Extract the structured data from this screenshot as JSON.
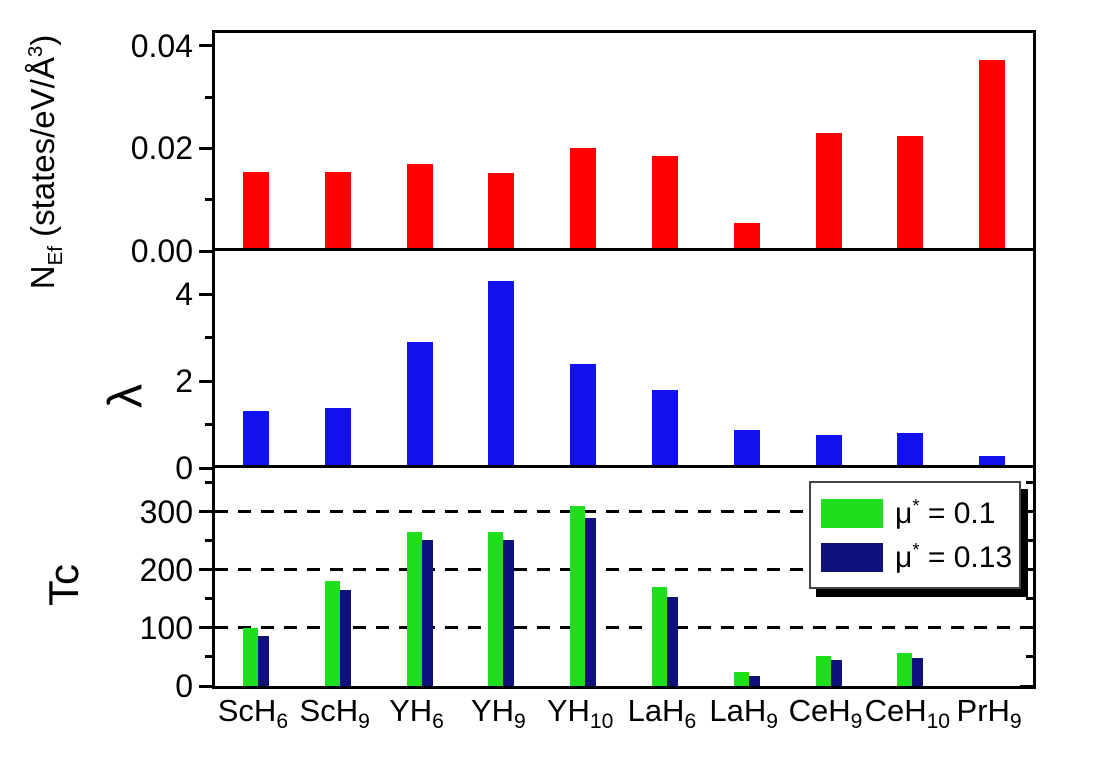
{
  "figure": {
    "background": "#ffffff",
    "frame_color": "#000000"
  },
  "axis": {
    "nef_label": {
      "main": "N",
      "sub": "Ef",
      "unit": " (states/eV/Å",
      "unit_sup": "3",
      "unit_close": ")"
    },
    "lambda_label": "λ",
    "tc_label": "Tc"
  },
  "legend": {
    "items": [
      {
        "symbol": "μ",
        "sup": "*",
        "text": " = 0.1",
        "color": "#1ede1e"
      },
      {
        "symbol": "μ",
        "sup": "*",
        "text": " = 0.13",
        "color": "#10107d"
      }
    ],
    "position": "top-right of Tc panel"
  },
  "chart_data": {
    "type": "bar",
    "layout": "three stacked panels sharing one category x-axis",
    "categories": [
      {
        "base": "ScH",
        "sub": "6"
      },
      {
        "base": "ScH",
        "sub": "9"
      },
      {
        "base": "YH",
        "sub": "6"
      },
      {
        "base": "YH",
        "sub": "9"
      },
      {
        "base": "YH",
        "sub": "10"
      },
      {
        "base": "LaH",
        "sub": "6"
      },
      {
        "base": "LaH",
        "sub": "9"
      },
      {
        "base": "CeH",
        "sub": "9"
      },
      {
        "base": "CeH",
        "sub": "10"
      },
      {
        "base": "PrH",
        "sub": "9"
      }
    ],
    "panels": [
      {
        "id": "nef",
        "ylabel": "N_Ef (states/eV/Å³)",
        "ylim": [
          0,
          0.0425
        ],
        "yticks_major": [
          {
            "v": 0,
            "label": "0.00"
          },
          {
            "v": 0.02,
            "label": "0.02"
          },
          {
            "v": 0.04,
            "label": "0.04"
          }
        ],
        "yticks_minor": [
          0.01,
          0.03
        ],
        "gridlines": [],
        "right_ticks": false,
        "series": [
          {
            "name": "N_Ef",
            "color": "#ff0000",
            "values": [
              0.0155,
              0.0155,
              0.017,
              0.0152,
              0.02,
              0.0185,
              0.0055,
              0.023,
              0.0225,
              0.0373
            ]
          }
        ]
      },
      {
        "id": "lambda",
        "ylabel": "λ",
        "ylim": [
          0,
          5
        ],
        "yticks_major": [
          {
            "v": 0,
            "label": "0"
          },
          {
            "v": 2,
            "label": "2"
          },
          {
            "v": 4,
            "label": "4"
          }
        ],
        "yticks_minor": [
          1,
          3
        ],
        "gridlines": [],
        "right_ticks": false,
        "series": [
          {
            "name": "λ",
            "color": "#1212f0",
            "values": [
              1.32,
              1.38,
              2.9,
              4.3,
              2.4,
              1.8,
              0.88,
              0.77,
              0.8,
              0.27
            ]
          }
        ]
      },
      {
        "id": "tc",
        "ylabel": "Tc",
        "ylim": [
          0,
          375
        ],
        "yticks_major": [
          {
            "v": 0,
            "label": "0"
          },
          {
            "v": 100,
            "label": "100"
          },
          {
            "v": 200,
            "label": "200"
          },
          {
            "v": 300,
            "label": "300"
          }
        ],
        "yticks_minor": [
          50,
          150,
          250,
          350
        ],
        "gridlines": [
          100,
          200,
          300
        ],
        "right_ticks": true,
        "series": [
          {
            "name": "μ* = 0.1",
            "color": "#1ede1e",
            "values": [
              100,
              180,
              265,
              265,
              310,
              170,
              24,
              51,
              56,
              0
            ]
          },
          {
            "name": "μ* = 0.13",
            "color": "#10107d",
            "values": [
              86,
              166,
              251,
              252,
              289,
              153,
              18,
              44,
              48,
              0
            ]
          }
        ]
      }
    ]
  }
}
